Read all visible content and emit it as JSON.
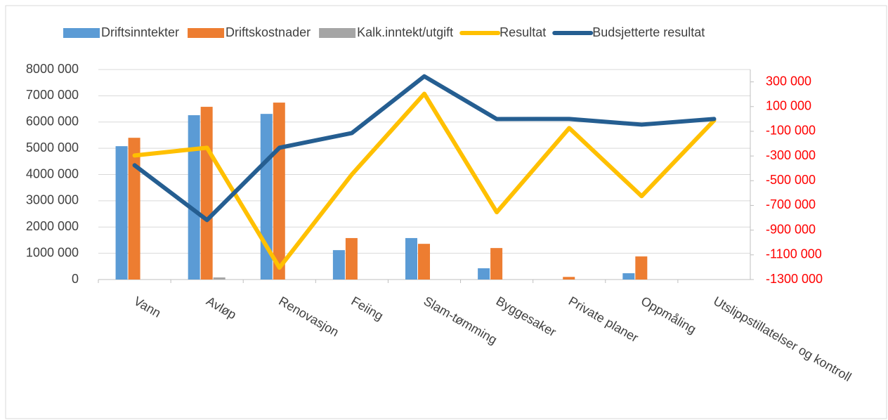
{
  "chart_data": {
    "type": "bar",
    "categories": [
      "Vann",
      "Avløp",
      "Renovasjon",
      "Feiing",
      "Slam-tømming",
      "Byggesaker",
      "Private planer",
      "Oppmåling",
      "Utslippstillatelser og kontroll"
    ],
    "series": [
      {
        "name": "Driftsinntekter",
        "color": "#5b9bd5",
        "type": "bar",
        "values": [
          5080000,
          6260000,
          6310000,
          1120000,
          1580000,
          430000,
          0,
          240000,
          0
        ]
      },
      {
        "name": "Driftskostnader",
        "color": "#ed7d31",
        "type": "bar",
        "values": [
          5400000,
          6580000,
          6740000,
          1580000,
          1360000,
          1200000,
          100000,
          880000,
          0
        ]
      },
      {
        "name": "Kalk.inntekt/utgift",
        "color": "#a5a5a5",
        "type": "bar",
        "values": [
          0,
          80000,
          0,
          0,
          0,
          0,
          0,
          0,
          0
        ]
      },
      {
        "name": "Resultat",
        "color": "#ffc000",
        "type": "line",
        "axis": "y2",
        "values": [
          -296000,
          -233000,
          -1204000,
          -449000,
          204000,
          -755000,
          -74000,
          -625000,
          -12000
        ]
      },
      {
        "name": "Budsjetterte resultat",
        "color": "#255e91",
        "type": "line",
        "axis": "y2",
        "values": [
          -375000,
          -818000,
          -233000,
          -114000,
          345000,
          -1000,
          0,
          -46000,
          0
        ]
      }
    ],
    "ylim": [
      0,
      8000000
    ],
    "yticks": [
      0,
      {
        "value": 1000000,
        "label": "1000 000"
      },
      {
        "value": 2000000,
        "label": "2000 000"
      },
      {
        "value": 3000000,
        "label": "3000 000"
      },
      {
        "value": 4000000,
        "label": "4000 000"
      },
      {
        "value": 5000000,
        "label": "5000 000"
      },
      {
        "value": 6000000,
        "label": "6000 000"
      },
      {
        "value": 7000000,
        "label": "7000 000"
      },
      {
        "value": 8000000,
        "label": "8000 000"
      }
    ],
    "y2lim": [
      -1300000,
      400000
    ],
    "y2ticks": [
      {
        "value": -1300000,
        "label": "-1300 000"
      },
      {
        "value": -1100000,
        "label": "-1100 000"
      },
      {
        "value": -900000,
        "label": "-900 000"
      },
      {
        "value": -700000,
        "label": "-700 000"
      },
      {
        "value": -500000,
        "label": "-500 000"
      },
      {
        "value": -300000,
        "label": "-300 000"
      },
      {
        "value": -100000,
        "label": "-100 000"
      },
      {
        "value": 100000,
        "label": "100 000"
      },
      {
        "value": 300000,
        "label": "300 000"
      }
    ],
    "y2_tick_color": "#ff0000",
    "grid": true,
    "legend": "top"
  }
}
